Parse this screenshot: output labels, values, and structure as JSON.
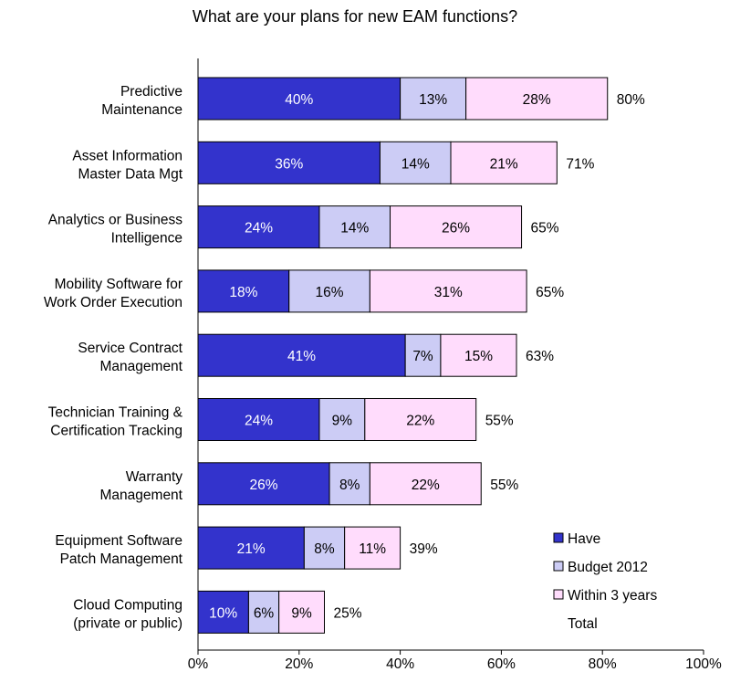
{
  "chart_data": {
    "type": "bar",
    "orientation": "horizontal",
    "stacked": true,
    "title": "What are your plans for new EAM functions?",
    "xlabel": "",
    "ylabel": "",
    "xlim": [
      0,
      100
    ],
    "x_ticks": [
      "0%",
      "20%",
      "40%",
      "60%",
      "80%",
      "100%"
    ],
    "grid": false,
    "legend_position": "bottom-right",
    "categories": [
      [
        "Predictive",
        "Maintenance"
      ],
      [
        "Asset Information",
        "Master Data Mgt"
      ],
      [
        "Analytics or Business",
        "Intelligence"
      ],
      [
        "Mobility Software for",
        "Work Order Execution"
      ],
      [
        "Service Contract",
        "Management"
      ],
      [
        "Technician Training &",
        "Certification Tracking"
      ],
      [
        "Warranty",
        "Management"
      ],
      [
        "Equipment Software",
        "Patch Management"
      ],
      [
        "Cloud Computing",
        "(private or public)"
      ]
    ],
    "series": [
      {
        "name": "Have",
        "color": "#3333cc",
        "label_color": "#ffffff",
        "values": [
          40,
          36,
          24,
          18,
          41,
          24,
          26,
          21,
          10
        ]
      },
      {
        "name": "Budget 2012",
        "color": "#ccccf5",
        "label_color": "#000000",
        "values": [
          13,
          14,
          14,
          16,
          7,
          9,
          8,
          8,
          6
        ]
      },
      {
        "name": "Within 3 years",
        "color": "#ffdcfc",
        "label_color": "#000000",
        "values": [
          28,
          21,
          26,
          31,
          15,
          22,
          22,
          11,
          9
        ]
      }
    ],
    "totals": {
      "name": "Total",
      "values": [
        80,
        71,
        65,
        65,
        63,
        55,
        55,
        39,
        25
      ]
    }
  }
}
